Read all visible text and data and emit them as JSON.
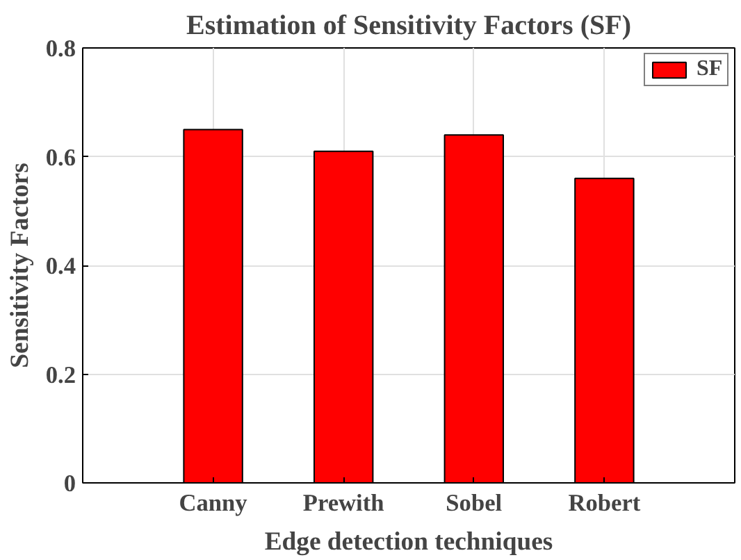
{
  "chart_data": {
    "type": "bar",
    "title": "Estimation of Sensitivity Factors (SF)",
    "xlabel": "Edge detection techniques",
    "ylabel": "Sensitivity Factors",
    "categories": [
      "Canny",
      "Prewith",
      "Sobel",
      "Robert"
    ],
    "series": [
      {
        "name": "SF",
        "color": "#ff0000",
        "values": [
          0.65,
          0.61,
          0.64,
          0.56
        ]
      }
    ],
    "ylim": [
      0,
      0.8
    ],
    "yticks": [
      0,
      0.2,
      0.4,
      0.6,
      0.8
    ],
    "grid": true,
    "legend": "top right"
  }
}
